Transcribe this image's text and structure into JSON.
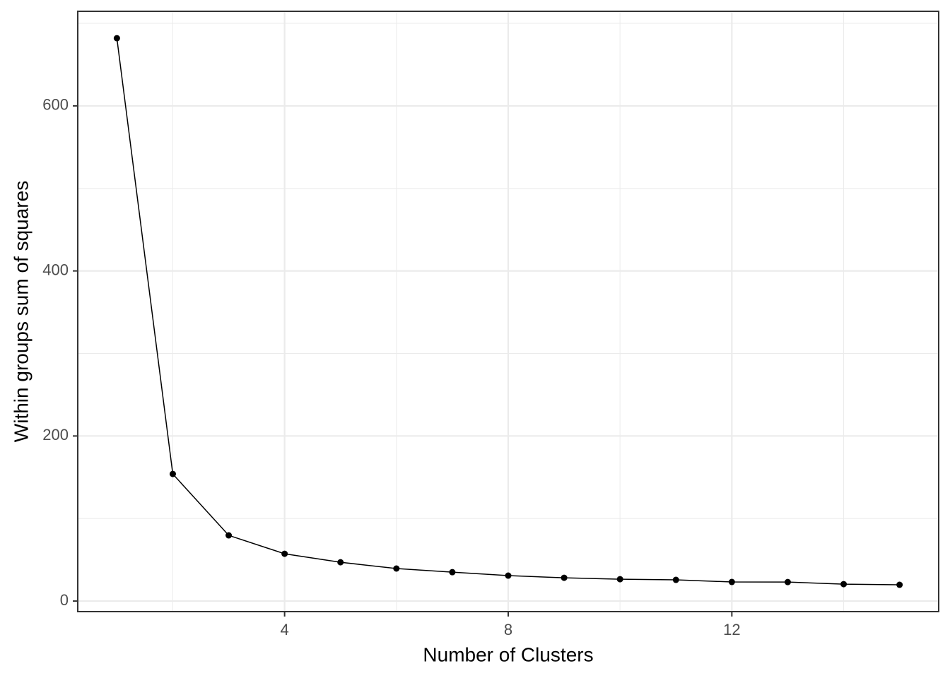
{
  "chart_data": {
    "type": "line",
    "xlabel": "Number of Clusters",
    "ylabel": "Within groups sum of squares",
    "x": [
      1,
      2,
      3,
      4,
      5,
      6,
      7,
      8,
      9,
      10,
      11,
      12,
      13,
      14,
      15
    ],
    "values": [
      682,
      154,
      79.6,
      57.3,
      47,
      39.4,
      35,
      30.8,
      28.2,
      26.5,
      25.7,
      23.1,
      23,
      20.5,
      19.7
    ],
    "color": "#000000",
    "markers": true,
    "xlim": [
      0.3,
      15.7
    ],
    "xticks": [
      4,
      8,
      12
    ],
    "minor_xticks": [
      2,
      6,
      10,
      14
    ],
    "ylim": [
      -12.8,
      714.6
    ],
    "yticks": [
      0,
      200,
      400,
      600
    ],
    "minor_yticks": [
      100,
      300,
      500,
      700
    ],
    "grid": true
  }
}
